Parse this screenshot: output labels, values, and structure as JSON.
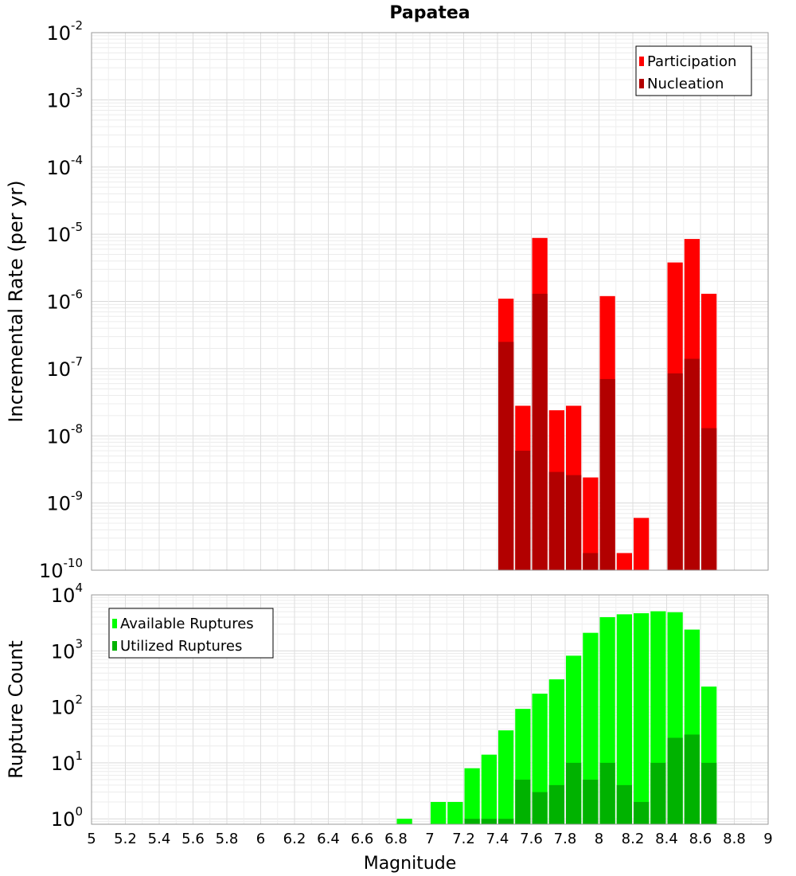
{
  "chart_data": [
    {
      "type": "bar",
      "title": "Papatea",
      "xlabel": "",
      "ylabel": "Incremental Rate (per yr)",
      "yscale": "log",
      "ylim": [
        1e-10,
        0.01
      ],
      "xlim": [
        5,
        9
      ],
      "bar_width": 0.1,
      "legend_position": "top-right",
      "y_ticks": [
        {
          "base": "10",
          "exp": "-10"
        },
        {
          "base": "10",
          "exp": "-9"
        },
        {
          "base": "10",
          "exp": "-8"
        },
        {
          "base": "10",
          "exp": "-7"
        },
        {
          "base": "10",
          "exp": "-6"
        },
        {
          "base": "10",
          "exp": "-5"
        },
        {
          "base": "10",
          "exp": "-4"
        },
        {
          "base": "10",
          "exp": "-3"
        },
        {
          "base": "10",
          "exp": "-2"
        }
      ],
      "series": [
        {
          "name": "Participation",
          "color": "#ff0000",
          "x": [
            7.45,
            7.55,
            7.65,
            7.75,
            7.85,
            7.95,
            8.05,
            8.15,
            8.25,
            8.45,
            8.55,
            8.65
          ],
          "values": [
            1.1e-06,
            2.8e-08,
            8.8e-06,
            2.4e-08,
            2.8e-08,
            2.4e-09,
            1.2e-06,
            1.8e-10,
            6e-10,
            3.8e-06,
            8.5e-06,
            1.3e-06
          ]
        },
        {
          "name": "Nucleation",
          "color": "#b20000",
          "x": [
            7.45,
            7.55,
            7.65,
            7.75,
            7.85,
            7.95,
            8.05,
            8.45,
            8.55,
            8.65
          ],
          "values": [
            2.5e-07,
            6e-09,
            1.3e-06,
            2.9e-09,
            2.6e-09,
            1.8e-10,
            7e-08,
            8.5e-08,
            1.4e-07,
            1.3e-08
          ]
        }
      ]
    },
    {
      "type": "bar",
      "title": "",
      "xlabel": "Magnitude",
      "ylabel": "Rupture Count",
      "yscale": "log",
      "ylim": [
        0.8,
        10000
      ],
      "xlim": [
        5,
        9
      ],
      "bar_width": 0.1,
      "legend_position": "top-left",
      "x_ticks": [
        "5",
        "5.2",
        "5.4",
        "5.6",
        "5.8",
        "6",
        "6.2",
        "6.4",
        "6.6",
        "6.8",
        "7",
        "7.2",
        "7.4",
        "7.6",
        "7.8",
        "8",
        "8.2",
        "8.4",
        "8.6",
        "8.8",
        "9"
      ],
      "y_ticks": [
        {
          "base": "10",
          "exp": "0"
        },
        {
          "base": "10",
          "exp": "1"
        },
        {
          "base": "10",
          "exp": "2"
        },
        {
          "base": "10",
          "exp": "3"
        },
        {
          "base": "10",
          "exp": "4"
        }
      ],
      "series": [
        {
          "name": "Available Ruptures",
          "color": "#00ff00",
          "x": [
            6.85,
            7.05,
            7.15,
            7.25,
            7.35,
            7.45,
            7.55,
            7.65,
            7.75,
            7.85,
            7.95,
            8.05,
            8.15,
            8.25,
            8.35,
            8.45,
            8.55,
            8.65
          ],
          "values": [
            1,
            2,
            2,
            8,
            14,
            38,
            92,
            172,
            310,
            820,
            2100,
            4000,
            4500,
            4700,
            5100,
            4900,
            2400,
            230
          ]
        },
        {
          "name": "Utilized Ruptures",
          "color": "#00b200",
          "x": [
            7.25,
            7.35,
            7.45,
            7.55,
            7.65,
            7.75,
            7.85,
            7.95,
            8.05,
            8.15,
            8.25,
            8.35,
            8.45,
            8.55,
            8.65
          ],
          "values": [
            1,
            1,
            1,
            5,
            3,
            4,
            10,
            5,
            10,
            4,
            2,
            10,
            28,
            32,
            10
          ]
        }
      ]
    }
  ]
}
